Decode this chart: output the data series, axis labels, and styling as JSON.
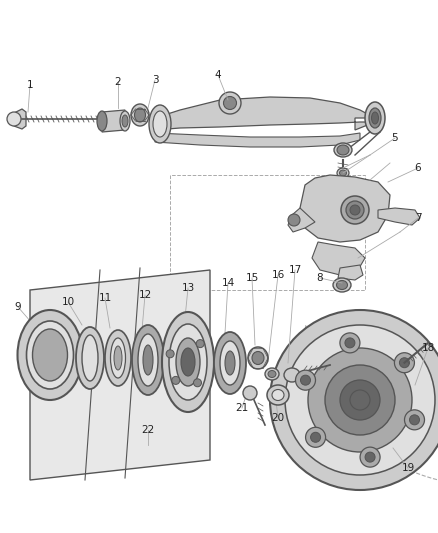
{
  "bg_color": "#ffffff",
  "lc": "#555555",
  "fig_width": 4.38,
  "fig_height": 5.33,
  "dpi": 100
}
